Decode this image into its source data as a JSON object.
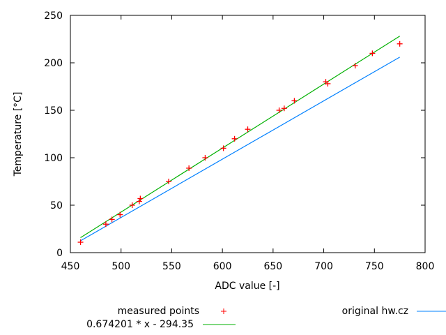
{
  "chart_data": {
    "type": "scatter",
    "title": "",
    "xlabel": "ADC value [-]",
    "ylabel": "Temperature [°C]",
    "xlim": [
      450,
      800
    ],
    "ylim": [
      0,
      250
    ],
    "xticks": [
      450,
      500,
      550,
      600,
      650,
      700,
      750,
      800
    ],
    "yticks": [
      0,
      50,
      100,
      150,
      200,
      250
    ],
    "grid": false,
    "legend_placement": "bottom",
    "series": [
      {
        "name": "measured points",
        "type": "points",
        "marker": "+",
        "color": "#ff0000",
        "x": [
          460,
          485,
          491,
          499,
          511,
          518,
          519,
          547,
          567,
          583,
          601,
          612,
          625,
          656,
          661,
          671,
          702,
          704,
          731,
          748,
          775
        ],
        "y": [
          11,
          30,
          35,
          40,
          50,
          54,
          57,
          75,
          89,
          100,
          110,
          120,
          130,
          150,
          152,
          160,
          180,
          178,
          197,
          210,
          220
        ]
      },
      {
        "name": "original hw.cz",
        "type": "line",
        "color": "#0080ff",
        "x": [
          460,
          775
        ],
        "y": [
          12.5,
          206
        ]
      },
      {
        "name": "0.674201 * x - 294.35",
        "type": "function",
        "color": "#00b000",
        "slope": 0.674201,
        "intercept": -294.35,
        "xrange": [
          460,
          775
        ]
      }
    ]
  }
}
